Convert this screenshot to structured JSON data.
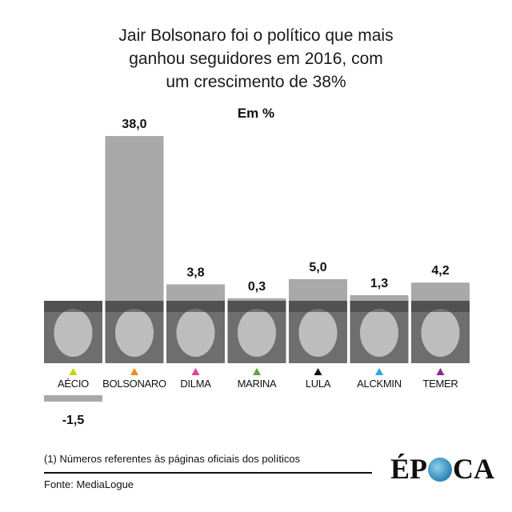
{
  "header": {
    "title_lines": [
      "Jair Bolsonaro foi o político que mais",
      "ganhou seguidores em 2016, com",
      "um crescimento de 38%"
    ],
    "subtitle": "Em %"
  },
  "chart_data": {
    "type": "bar",
    "categories": [
      "AÉCIO",
      "BOLSONARO",
      "DILMA",
      "MARINA",
      "LULA",
      "ALCKMIN",
      "TEMER"
    ],
    "values": [
      -1.5,
      38.0,
      3.8,
      0.3,
      5.0,
      1.3,
      4.2
    ],
    "value_labels": [
      "-1,5",
      "38,0",
      "3,8",
      "0,3",
      "5,0",
      "1,3",
      "4,2"
    ],
    "marker_colors": [
      "#c8d400",
      "#f08a1c",
      "#e63c96",
      "#5aa53c",
      "#111111",
      "#2aa8df",
      "#8b2a8e"
    ],
    "bar_color": "#a9a9a9",
    "title": "Jair Bolsonaro foi o político que mais ganhou seguidores em 2016, com um crescimento de 38%",
    "ylabel": "Em %",
    "ylim": [
      -1.5,
      38.0
    ],
    "grid": false,
    "legend": "none"
  },
  "footer": {
    "footnote": "(1) Números referentes às páginas oficiais dos políticos",
    "source": "Fonte: MediaLogue",
    "logo_left": "ÉP",
    "logo_right": "CA"
  }
}
